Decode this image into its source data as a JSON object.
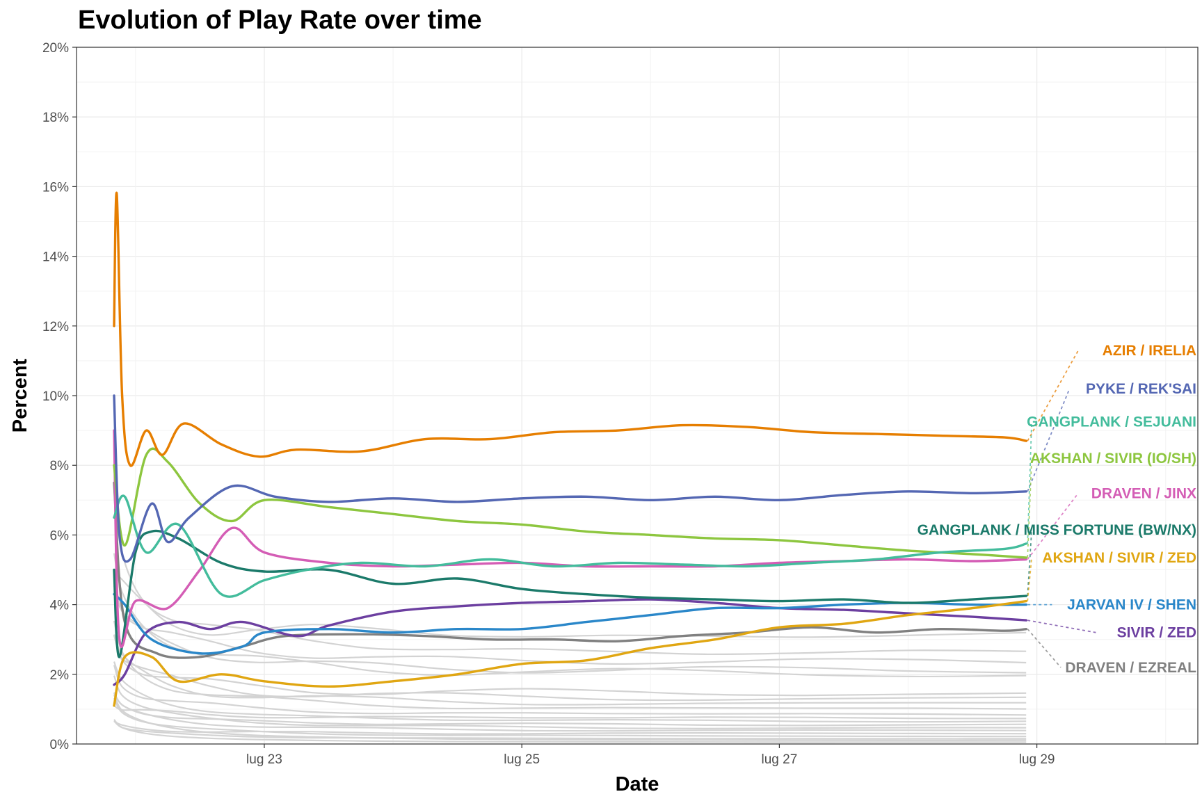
{
  "chart_data": {
    "type": "line",
    "title": "Evolution of Play Rate over time",
    "xlabel": "Date",
    "ylabel": "Percent",
    "x_ticks": [
      {
        "date": "2023-07-23",
        "label": "lug 23"
      },
      {
        "date": "2023-07-25",
        "label": "lug 25"
      },
      {
        "date": "2023-07-27",
        "label": "lug 27"
      },
      {
        "date": "2023-07-29",
        "label": "lug 29"
      }
    ],
    "xlim": [
      "2023-07-21T13:00",
      "2023-07-30T06:00"
    ],
    "ylim": [
      0,
      20
    ],
    "y_ticks": [
      0,
      2,
      4,
      6,
      8,
      10,
      12,
      14,
      16,
      18,
      20
    ],
    "y_tick_labels": [
      "0%",
      "2%",
      "4%",
      "6%",
      "8%",
      "10%",
      "12%",
      "14%",
      "16%",
      "18%",
      "20%"
    ],
    "grid": true,
    "legend": "direct labels at right end of lines",
    "background_line_color": "#d3d3d3",
    "series": [
      {
        "name": "AZIR / IRELIA",
        "color": "#E67E00",
        "label_value": 11.3,
        "points": [
          [
            "2023-07-21T20:00",
            12.0
          ],
          [
            "2023-07-21T20:30",
            15.8
          ],
          [
            "2023-07-21T21:30",
            10.0
          ],
          [
            "2023-07-21T23:00",
            8.0
          ],
          [
            "2023-07-22T02:00",
            9.0
          ],
          [
            "2023-07-22T05:00",
            8.3
          ],
          [
            "2023-07-22T09:00",
            9.2
          ],
          [
            "2023-07-22T16:00",
            8.6
          ],
          [
            "2023-07-22T23:00",
            8.25
          ],
          [
            "2023-07-23T06:00",
            8.45
          ],
          [
            "2023-07-23T18:00",
            8.4
          ],
          [
            "2023-07-24T06:00",
            8.75
          ],
          [
            "2023-07-24T18:00",
            8.75
          ],
          [
            "2023-07-25T06:00",
            8.95
          ],
          [
            "2023-07-25T18:00",
            9.0
          ],
          [
            "2023-07-26T06:00",
            9.15
          ],
          [
            "2023-07-26T18:00",
            9.1
          ],
          [
            "2023-07-27T06:00",
            8.95
          ],
          [
            "2023-07-27T18:00",
            8.9
          ],
          [
            "2023-07-28T06:00",
            8.85
          ],
          [
            "2023-07-28T18:00",
            8.8
          ],
          [
            "2023-07-28T22:00",
            8.7
          ]
        ]
      },
      {
        "name": "PYKE / REK'SAI",
        "color": "#5467B3",
        "label_value": 10.2,
        "points": [
          [
            "2023-07-21T20:00",
            10.0
          ],
          [
            "2023-07-21T21:00",
            6.0
          ],
          [
            "2023-07-21T23:00",
            5.3
          ],
          [
            "2023-07-22T03:00",
            6.9
          ],
          [
            "2023-07-22T06:00",
            5.8
          ],
          [
            "2023-07-22T10:00",
            6.5
          ],
          [
            "2023-07-22T18:00",
            7.4
          ],
          [
            "2023-07-23T02:00",
            7.1
          ],
          [
            "2023-07-23T12:00",
            6.95
          ],
          [
            "2023-07-24T00:00",
            7.05
          ],
          [
            "2023-07-24T12:00",
            6.95
          ],
          [
            "2023-07-25T00:00",
            7.05
          ],
          [
            "2023-07-25T12:00",
            7.1
          ],
          [
            "2023-07-26T00:00",
            7.0
          ],
          [
            "2023-07-26T12:00",
            7.1
          ],
          [
            "2023-07-27T00:00",
            7.0
          ],
          [
            "2023-07-27T12:00",
            7.15
          ],
          [
            "2023-07-28T00:00",
            7.25
          ],
          [
            "2023-07-28T12:00",
            7.2
          ],
          [
            "2023-07-28T22:00",
            7.25
          ]
        ]
      },
      {
        "name": "GANGPLANK / SEJUANI",
        "color": "#43BC9C",
        "label_value": 9.25,
        "points": [
          [
            "2023-07-21T20:00",
            6.5
          ],
          [
            "2023-07-21T22:00",
            7.1
          ],
          [
            "2023-07-22T02:00",
            5.5
          ],
          [
            "2023-07-22T08:00",
            6.3
          ],
          [
            "2023-07-22T16:00",
            4.3
          ],
          [
            "2023-07-23T00:00",
            4.7
          ],
          [
            "2023-07-23T08:00",
            5.0
          ],
          [
            "2023-07-23T18:00",
            5.2
          ],
          [
            "2023-07-24T06:00",
            5.1
          ],
          [
            "2023-07-24T18:00",
            5.3
          ],
          [
            "2023-07-25T06:00",
            5.1
          ],
          [
            "2023-07-25T18:00",
            5.2
          ],
          [
            "2023-07-26T06:00",
            5.15
          ],
          [
            "2023-07-26T18:00",
            5.1
          ],
          [
            "2023-07-27T06:00",
            5.2
          ],
          [
            "2023-07-27T18:00",
            5.3
          ],
          [
            "2023-07-28T06:00",
            5.5
          ],
          [
            "2023-07-28T18:00",
            5.6
          ],
          [
            "2023-07-28T22:00",
            5.75
          ]
        ]
      },
      {
        "name": "AKSHAN / SIVIR (IO/SH)",
        "color": "#8DC63F",
        "label_value": 8.2,
        "points": [
          [
            "2023-07-21T20:00",
            8.0
          ],
          [
            "2023-07-21T22:00",
            5.7
          ],
          [
            "2023-07-22T02:00",
            8.3
          ],
          [
            "2023-07-22T06:00",
            8.1
          ],
          [
            "2023-07-22T12:00",
            6.9
          ],
          [
            "2023-07-22T18:00",
            6.4
          ],
          [
            "2023-07-23T00:00",
            7.0
          ],
          [
            "2023-07-23T12:00",
            6.8
          ],
          [
            "2023-07-24T00:00",
            6.6
          ],
          [
            "2023-07-24T12:00",
            6.4
          ],
          [
            "2023-07-25T00:00",
            6.3
          ],
          [
            "2023-07-25T12:00",
            6.1
          ],
          [
            "2023-07-26T00:00",
            6.0
          ],
          [
            "2023-07-26T12:00",
            5.9
          ],
          [
            "2023-07-27T00:00",
            5.85
          ],
          [
            "2023-07-27T12:00",
            5.7
          ],
          [
            "2023-07-28T00:00",
            5.55
          ],
          [
            "2023-07-28T12:00",
            5.45
          ],
          [
            "2023-07-28T22:00",
            5.35
          ]
        ]
      },
      {
        "name": "DRAVEN / JINX",
        "color": "#D45DB5",
        "label_value": 7.2,
        "points": [
          [
            "2023-07-21T20:00",
            9.0
          ],
          [
            "2023-07-21T21:00",
            3.0
          ],
          [
            "2023-07-22T00:00",
            4.1
          ],
          [
            "2023-07-22T06:00",
            3.9
          ],
          [
            "2023-07-22T12:00",
            5.0
          ],
          [
            "2023-07-22T18:00",
            6.2
          ],
          [
            "2023-07-23T00:00",
            5.5
          ],
          [
            "2023-07-23T12:00",
            5.2
          ],
          [
            "2023-07-24T00:00",
            5.1
          ],
          [
            "2023-07-24T12:00",
            5.15
          ],
          [
            "2023-07-25T00:00",
            5.2
          ],
          [
            "2023-07-25T12:00",
            5.1
          ],
          [
            "2023-07-26T00:00",
            5.1
          ],
          [
            "2023-07-26T12:00",
            5.1
          ],
          [
            "2023-07-27T00:00",
            5.2
          ],
          [
            "2023-07-27T12:00",
            5.25
          ],
          [
            "2023-07-28T00:00",
            5.3
          ],
          [
            "2023-07-28T12:00",
            5.25
          ],
          [
            "2023-07-28T22:00",
            5.3
          ]
        ]
      },
      {
        "name": "GANGPLANK / MISS FORTUNE (BW/NX)",
        "color": "#1B7A6A",
        "label_value": 6.15,
        "points": [
          [
            "2023-07-21T20:00",
            5.0
          ],
          [
            "2023-07-21T21:00",
            2.5
          ],
          [
            "2023-07-22T00:00",
            5.5
          ],
          [
            "2023-07-22T03:00",
            6.1
          ],
          [
            "2023-07-22T08:00",
            5.9
          ],
          [
            "2023-07-22T16:00",
            5.2
          ],
          [
            "2023-07-23T00:00",
            4.95
          ],
          [
            "2023-07-23T12:00",
            5.0
          ],
          [
            "2023-07-24T00:00",
            4.6
          ],
          [
            "2023-07-24T12:00",
            4.75
          ],
          [
            "2023-07-25T00:00",
            4.45
          ],
          [
            "2023-07-25T12:00",
            4.3
          ],
          [
            "2023-07-26T00:00",
            4.2
          ],
          [
            "2023-07-26T12:00",
            4.15
          ],
          [
            "2023-07-27T00:00",
            4.1
          ],
          [
            "2023-07-27T12:00",
            4.15
          ],
          [
            "2023-07-28T00:00",
            4.05
          ],
          [
            "2023-07-28T12:00",
            4.15
          ],
          [
            "2023-07-28T22:00",
            4.25
          ]
        ]
      },
      {
        "name": "AKSHAN / SIVIR / ZED",
        "color": "#E0A612",
        "label_value": 5.35,
        "points": [
          [
            "2023-07-21T20:00",
            1.1
          ],
          [
            "2023-07-21T22:00",
            2.5
          ],
          [
            "2023-07-22T03:00",
            2.5
          ],
          [
            "2023-07-22T08:00",
            1.8
          ],
          [
            "2023-07-22T16:00",
            2.0
          ],
          [
            "2023-07-23T00:00",
            1.8
          ],
          [
            "2023-07-23T12:00",
            1.65
          ],
          [
            "2023-07-24T00:00",
            1.8
          ],
          [
            "2023-07-24T12:00",
            2.0
          ],
          [
            "2023-07-25T00:00",
            2.3
          ],
          [
            "2023-07-25T12:00",
            2.4
          ],
          [
            "2023-07-26T00:00",
            2.75
          ],
          [
            "2023-07-26T12:00",
            3.0
          ],
          [
            "2023-07-27T00:00",
            3.35
          ],
          [
            "2023-07-27T12:00",
            3.45
          ],
          [
            "2023-07-28T00:00",
            3.7
          ],
          [
            "2023-07-28T12:00",
            3.9
          ],
          [
            "2023-07-28T22:00",
            4.1
          ]
        ]
      },
      {
        "name": "JARVAN IV / SHEN",
        "color": "#2A87C9",
        "label_value": 4.0,
        "points": [
          [
            "2023-07-21T20:00",
            4.3
          ],
          [
            "2023-07-21T22:00",
            4.0
          ],
          [
            "2023-07-22T03:00",
            3.0
          ],
          [
            "2023-07-22T12:00",
            2.6
          ],
          [
            "2023-07-22T20:00",
            2.8
          ],
          [
            "2023-07-23T00:00",
            3.2
          ],
          [
            "2023-07-23T12:00",
            3.3
          ],
          [
            "2023-07-24T00:00",
            3.2
          ],
          [
            "2023-07-24T12:00",
            3.3
          ],
          [
            "2023-07-25T00:00",
            3.3
          ],
          [
            "2023-07-25T12:00",
            3.5
          ],
          [
            "2023-07-26T00:00",
            3.7
          ],
          [
            "2023-07-26T12:00",
            3.9
          ],
          [
            "2023-07-27T00:00",
            3.9
          ],
          [
            "2023-07-27T12:00",
            4.0
          ],
          [
            "2023-07-28T00:00",
            4.05
          ],
          [
            "2023-07-28T12:00",
            4.0
          ],
          [
            "2023-07-28T22:00",
            4.0
          ]
        ]
      },
      {
        "name": "SIVIR / ZED",
        "color": "#6C3FA0",
        "label_value": 3.2,
        "points": [
          [
            "2023-07-21T20:00",
            1.7
          ],
          [
            "2023-07-21T22:00",
            2.0
          ],
          [
            "2023-07-22T02:00",
            3.2
          ],
          [
            "2023-07-22T08:00",
            3.5
          ],
          [
            "2023-07-22T14:00",
            3.3
          ],
          [
            "2023-07-22T20:00",
            3.5
          ],
          [
            "2023-07-23T06:00",
            3.1
          ],
          [
            "2023-07-23T12:00",
            3.4
          ],
          [
            "2023-07-24T00:00",
            3.8
          ],
          [
            "2023-07-24T12:00",
            3.95
          ],
          [
            "2023-07-25T00:00",
            4.05
          ],
          [
            "2023-07-25T12:00",
            4.1
          ],
          [
            "2023-07-26T00:00",
            4.15
          ],
          [
            "2023-07-26T12:00",
            4.05
          ],
          [
            "2023-07-27T00:00",
            3.9
          ],
          [
            "2023-07-27T12:00",
            3.85
          ],
          [
            "2023-07-28T00:00",
            3.75
          ],
          [
            "2023-07-28T12:00",
            3.65
          ],
          [
            "2023-07-28T22:00",
            3.55
          ]
        ]
      },
      {
        "name": "DRAVEN / EZREAL",
        "color": "#808080",
        "label_value": 2.2,
        "points": [
          [
            "2023-07-21T20:00",
            7.5
          ],
          [
            "2023-07-21T22:00",
            3.5
          ],
          [
            "2023-07-22T04:00",
            2.6
          ],
          [
            "2023-07-22T12:00",
            2.5
          ],
          [
            "2023-07-22T20:00",
            2.8
          ],
          [
            "2023-07-23T04:00",
            3.1
          ],
          [
            "2023-07-23T18:00",
            3.15
          ],
          [
            "2023-07-24T06:00",
            3.1
          ],
          [
            "2023-07-24T18:00",
            3.0
          ],
          [
            "2023-07-25T06:00",
            3.0
          ],
          [
            "2023-07-25T18:00",
            2.95
          ],
          [
            "2023-07-26T06:00",
            3.1
          ],
          [
            "2023-07-26T18:00",
            3.2
          ],
          [
            "2023-07-27T06:00",
            3.35
          ],
          [
            "2023-07-27T18:00",
            3.2
          ],
          [
            "2023-07-28T06:00",
            3.3
          ],
          [
            "2023-07-28T18:00",
            3.25
          ],
          [
            "2023-07-28T22:00",
            3.3
          ]
        ]
      }
    ],
    "background_series_end_values": [
      3.1,
      2.6,
      2.35,
      2.1,
      2.0,
      1.45,
      1.3,
      1.15,
      1.0,
      0.85,
      0.75,
      0.65,
      0.55,
      0.45,
      0.38,
      0.3,
      0.22,
      0.15,
      0.1,
      0.05
    ]
  }
}
